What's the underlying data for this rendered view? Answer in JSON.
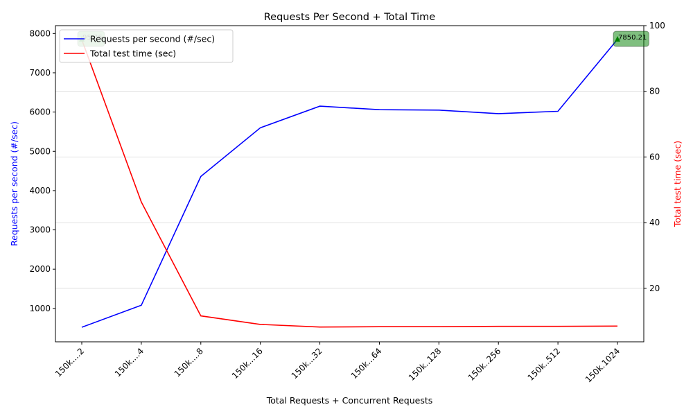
{
  "chart_data": {
    "type": "line",
    "title": "Requests Per Second + Total Time",
    "xlabel": "Total Requests + Concurrent Requests",
    "ylabel_left": "Requests per second (#/sec)",
    "ylabel_right": "Total test time (sec)",
    "categories": [
      "150k....2",
      "150k....4",
      "150k....8",
      "150k...16",
      "150k...32",
      "150k...64",
      "150k..128",
      "150k..256",
      "150k..512",
      "150k.1024"
    ],
    "ylim_left": [
      150,
      8200
    ],
    "ylim_right": [
      3.7,
      100
    ],
    "yticks_left": [
      1000,
      2000,
      3000,
      4000,
      5000,
      6000,
      7000,
      8000
    ],
    "yticks_right": [
      20,
      40,
      60,
      80,
      100
    ],
    "grid": "horizontal, right axis",
    "legend": "top-left",
    "series": [
      {
        "name": "Requests per second (#/sec)",
        "axis": "left",
        "color": "#0000ff",
        "values": [
          520,
          1080,
          4360,
          5600,
          6150,
          6060,
          6050,
          5960,
          6020,
          7850.21
        ]
      },
      {
        "name": "Total test time (sec)",
        "axis": "right",
        "color": "#ff0000",
        "values": [
          95.76,
          46.3,
          11.6,
          9.0,
          8.2,
          8.3,
          8.3,
          8.4,
          8.4,
          8.5
        ]
      }
    ],
    "annotations": [
      {
        "text": "95.76",
        "category_index": 0
      },
      {
        "text": "7850.21",
        "category_index": 9
      }
    ],
    "annotation_color": "#008000"
  }
}
